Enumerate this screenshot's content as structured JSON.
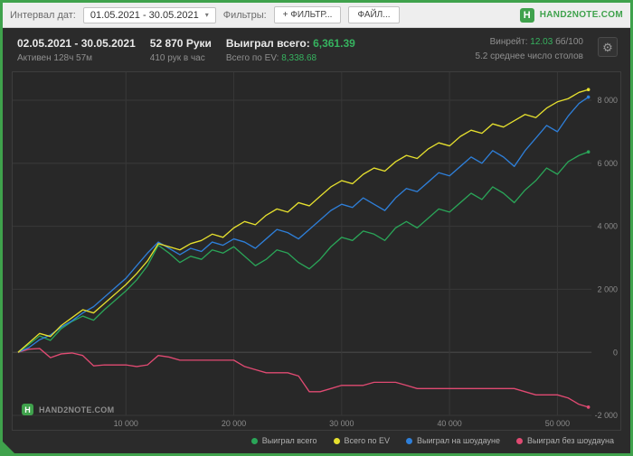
{
  "window": {
    "frame_color": "#3fa24c"
  },
  "icons": {
    "gear": "⚙",
    "caret": "▾"
  },
  "toolbar": {
    "date_interval_label": "Интервал дат:",
    "date_range_value": "01.05.2021 - 30.05.2021",
    "filters_label": "Фильтры:",
    "add_filter_button": "+ ФИЛЬТР...",
    "file_button": "ФАЙЛ...",
    "logo_letter": "H",
    "brand": "HAND2NOTE.COM"
  },
  "stats": {
    "date_range": "02.05.2021 - 30.05.2021",
    "active_time": "Активен 128ч 57м",
    "hands_count": "52 870 Руки",
    "hands_per_hour": "410 рук в час",
    "won_total_label": "Выиграл всего:",
    "won_total_value": "6,361.39",
    "ev_total_label": "Всего по EV:",
    "ev_total_value": "8,338.68",
    "winrate_label": "Винрейт:",
    "winrate_value": "12.03",
    "winrate_units": "бб/100",
    "avg_tables": "5.2 среднее число столов"
  },
  "watermark": {
    "logo_letter": "H",
    "text": "HAND2NOTE.COM"
  },
  "chart_data": {
    "type": "line",
    "title": "",
    "xlabel": "hands",
    "ylabel": "winnings",
    "xlim": [
      0,
      52870
    ],
    "ylim": [
      -2600,
      8890
    ],
    "grid": true,
    "legend_position": "bottom-right",
    "x_ticks": [
      {
        "value": 10000,
        "label": "10 000"
      },
      {
        "value": 20000,
        "label": "20 000"
      },
      {
        "value": 30000,
        "label": "30 000"
      },
      {
        "value": 40000,
        "label": "40 000"
      },
      {
        "value": 50000,
        "label": "50 000"
      }
    ],
    "y_ticks": [
      {
        "value": 8000,
        "label": "8 000"
      },
      {
        "value": 6000,
        "label": "6 000"
      },
      {
        "value": 4000,
        "label": "4 000"
      },
      {
        "value": 2000,
        "label": "2 000"
      },
      {
        "value": 0,
        "label": "0"
      },
      {
        "value": -2000,
        "label": "-2 000"
      }
    ],
    "x_hands": [
      0,
      1000,
      2000,
      3000,
      4000,
      5000,
      6000,
      7000,
      8000,
      9000,
      10000,
      11000,
      12000,
      13000,
      14000,
      15000,
      16000,
      17000,
      18000,
      19000,
      20000,
      21000,
      22000,
      23000,
      24000,
      25000,
      26000,
      27000,
      28000,
      29000,
      30000,
      31000,
      32000,
      33000,
      34000,
      35000,
      36000,
      37000,
      38000,
      39000,
      40000,
      41000,
      42000,
      43000,
      44000,
      45000,
      46000,
      47000,
      48000,
      49000,
      50000,
      51000,
      52000,
      52870
    ],
    "series": [
      {
        "name": "Выиграл всего",
        "color": "#2aa558",
        "values": [
          0,
          250,
          520,
          380,
          750,
          980,
          1150,
          1020,
          1350,
          1650,
          1950,
          2300,
          2750,
          3400,
          3150,
          2850,
          3050,
          2950,
          3250,
          3150,
          3350,
          3050,
          2750,
          2950,
          3250,
          3150,
          2850,
          2650,
          2950,
          3350,
          3650,
          3550,
          3850,
          3750,
          3550,
          3950,
          4150,
          3950,
          4250,
          4550,
          4450,
          4750,
          5050,
          4850,
          5250,
          5050,
          4750,
          5150,
          5450,
          5850,
          5650,
          6050,
          6250,
          6361.39
        ]
      },
      {
        "name": "Всего по EV",
        "color": "#e6e02e",
        "values": [
          0,
          300,
          600,
          500,
          850,
          1100,
          1350,
          1250,
          1550,
          1850,
          2150,
          2500,
          2900,
          3450,
          3350,
          3250,
          3450,
          3550,
          3750,
          3650,
          3950,
          4150,
          4050,
          4350,
          4550,
          4450,
          4750,
          4650,
          4950,
          5250,
          5450,
          5350,
          5650,
          5850,
          5750,
          6050,
          6250,
          6150,
          6450,
          6650,
          6550,
          6850,
          7050,
          6950,
          7250,
          7150,
          7350,
          7550,
          7450,
          7750,
          7950,
          8050,
          8250,
          8338.68
        ]
      },
      {
        "name": "Выиграл на шоудауне",
        "color": "#2e7fd9",
        "values": [
          0,
          150,
          400,
          550,
          800,
          1000,
          1250,
          1450,
          1750,
          2050,
          2350,
          2750,
          3150,
          3500,
          3300,
          3100,
          3300,
          3200,
          3500,
          3400,
          3600,
          3500,
          3300,
          3600,
          3900,
          3800,
          3600,
          3900,
          4200,
          4500,
          4700,
          4600,
          4900,
          4700,
          4500,
          4900,
          5200,
          5100,
          5400,
          5700,
          5600,
          5900,
          6200,
          6000,
          6400,
          6200,
          5900,
          6400,
          6800,
          7200,
          7000,
          7500,
          7900,
          8100
        ]
      },
      {
        "name": "Выиграл без шоудауна",
        "color": "#e04a72",
        "values": [
          0,
          100,
          120,
          -170,
          -50,
          -20,
          -100,
          -430,
          -400,
          -400,
          -400,
          -450,
          -400,
          -100,
          -150,
          -250,
          -250,
          -250,
          -250,
          -250,
          -250,
          -450,
          -550,
          -650,
          -650,
          -650,
          -750,
          -1250,
          -1250,
          -1150,
          -1050,
          -1050,
          -1050,
          -950,
          -950,
          -950,
          -1050,
          -1150,
          -1150,
          -1150,
          -1150,
          -1150,
          -1150,
          -1150,
          -1150,
          -1150,
          -1150,
          -1250,
          -1350,
          -1350,
          -1350,
          -1450,
          -1650,
          -1738.61
        ]
      }
    ]
  }
}
